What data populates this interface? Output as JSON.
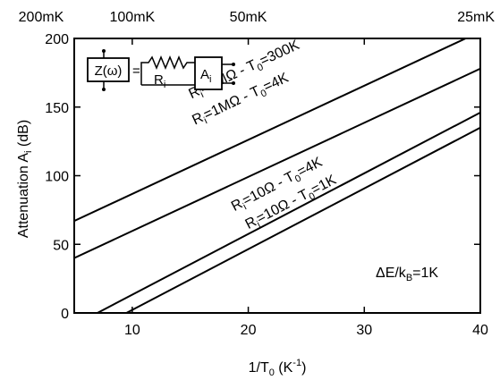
{
  "chart_data": {
    "type": "line",
    "title": "",
    "xlabel": "1/T",
    "xlabel_sub": "0",
    "xlabel_unit": " (K",
    "xlabel_unit_exp": "-1",
    "xlabel_close": ")",
    "ylabel": "Attenuation A",
    "ylabel_sub": "i",
    "ylabel_unit": " (dB)",
    "xlim": [
      5,
      40
    ],
    "ylim": [
      0,
      200
    ],
    "x_ticks": [
      10,
      20,
      30,
      40
    ],
    "y_ticks": [
      0,
      50,
      100,
      150,
      200
    ],
    "top_axis": [
      {
        "x": 5,
        "label": "200mK"
      },
      {
        "x": 10,
        "label": "100mK"
      },
      {
        "x": 20,
        "label": "50mK"
      },
      {
        "x": 40,
        "label": "25mK"
      }
    ],
    "series": [
      {
        "label": "Ri=1MΩ - T0=300K",
        "x": [
          5,
          40
        ],
        "y": [
          67,
          205
        ]
      },
      {
        "label": "Ri=1MΩ - T0=4K",
        "x": [
          5,
          40
        ],
        "y": [
          40,
          178
        ]
      },
      {
        "label": "Ri=10Ω - T0=4K",
        "x": [
          7,
          40
        ],
        "y": [
          0,
          146
        ]
      },
      {
        "label": "Ri=10Ω - T0=1K",
        "x": [
          9.5,
          40
        ],
        "y": [
          0,
          135
        ]
      }
    ],
    "curve_labels": [
      {
        "main": "R",
        "sub": "i",
        "rest": "=1MΩ - T",
        "sub2": "0",
        "rest2": "=300K",
        "series": 0
      },
      {
        "main": "R",
        "sub": "i",
        "rest": "=1MΩ - T",
        "sub2": "0",
        "rest2": "=4K",
        "series": 1
      },
      {
        "main": "R",
        "sub": "i",
        "rest": "=10Ω - T",
        "sub2": "0",
        "rest2": "=4K",
        "series": 2
      },
      {
        "main": "R",
        "sub": "i",
        "rest": "=10Ω - T",
        "sub2": "0",
        "rest2": "=1K",
        "series": 3
      }
    ],
    "annotation": {
      "prefix": "ΔE/k",
      "sub": "B",
      "suffix": "=1K"
    },
    "inset": {
      "z_label": "Z(ω)",
      "equals": "=",
      "r_main": "R",
      "r_sub": "i",
      "a_main": "A",
      "a_sub": "i"
    },
    "grid": false,
    "legend": "none"
  }
}
